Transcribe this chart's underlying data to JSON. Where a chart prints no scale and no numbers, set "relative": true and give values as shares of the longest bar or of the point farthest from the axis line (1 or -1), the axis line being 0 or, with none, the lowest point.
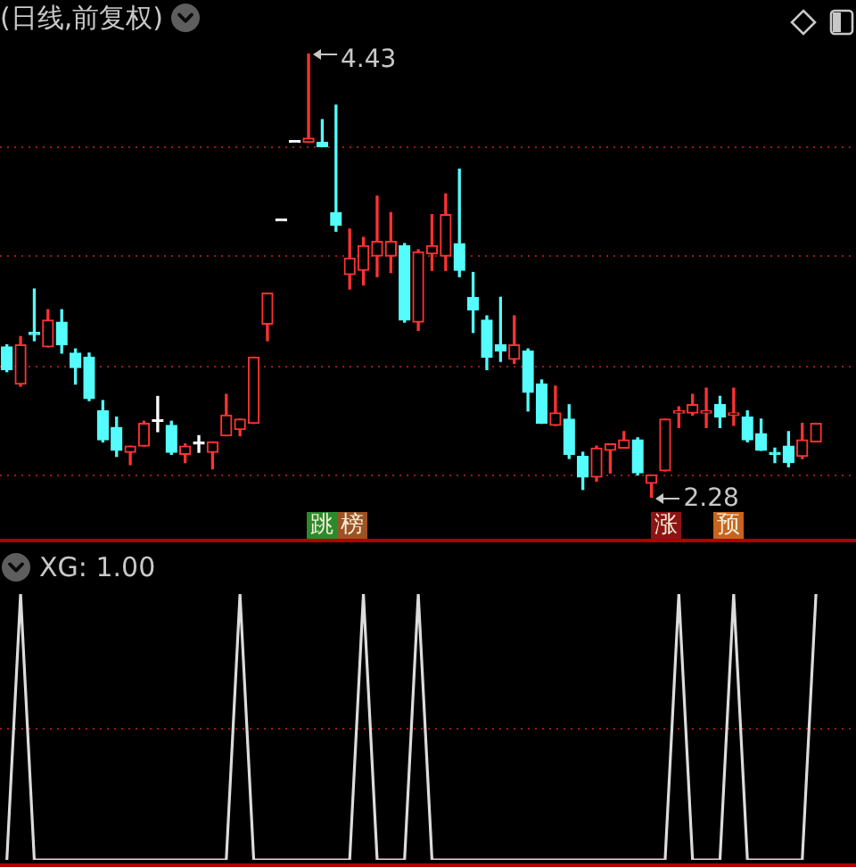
{
  "chart_data": [
    {
      "type": "candlestick",
      "title": "(日线,前复权)",
      "categories": [
        null,
        null,
        null,
        null,
        null,
        null,
        null,
        null,
        null,
        null,
        null,
        null,
        null,
        null,
        null,
        null,
        null,
        null,
        null,
        null,
        null,
        null,
        null,
        null,
        null,
        null,
        null,
        null,
        null,
        null,
        null,
        null,
        null,
        null,
        null,
        null,
        null,
        null,
        null,
        null,
        null,
        null,
        null,
        null,
        null,
        null,
        null,
        null,
        null,
        null,
        null,
        null,
        null,
        null,
        null,
        null,
        null,
        null,
        null,
        null
      ],
      "ohlc": [
        [
          3.01,
          3.02,
          2.89,
          2.9
        ],
        [
          2.83,
          3.06,
          2.82,
          3.02
        ],
        [
          3.08,
          3.29,
          3.04,
          3.07
        ],
        [
          3.01,
          3.19,
          3.01,
          3.14
        ],
        [
          3.13,
          3.19,
          2.98,
          3.02
        ],
        [
          2.98,
          3.0,
          2.83,
          2.91
        ],
        [
          2.96,
          2.98,
          2.75,
          2.76
        ],
        [
          2.7,
          2.75,
          2.55,
          2.56
        ],
        [
          2.62,
          2.67,
          2.48,
          2.51
        ],
        [
          2.5,
          2.53,
          2.44,
          2.53
        ],
        [
          2.53,
          2.65,
          2.53,
          2.64
        ],
        [
          2.65,
          2.77,
          2.6,
          2.65
        ],
        [
          2.63,
          2.65,
          2.49,
          2.5
        ],
        [
          2.49,
          2.54,
          2.45,
          2.53
        ],
        [
          2.54,
          2.58,
          2.5,
          2.54
        ],
        [
          2.5,
          2.55,
          2.42,
          2.55
        ],
        [
          2.58,
          2.78,
          2.58,
          2.68
        ],
        [
          2.61,
          2.66,
          2.58,
          2.66
        ],
        [
          2.64,
          2.96,
          2.64,
          2.96
        ],
        [
          3.12,
          3.27,
          3.04,
          3.27
        ],
        [
          3.62,
          3.62,
          3.62,
          3.62
        ],
        [
          4.0,
          4.0,
          4.0,
          4.0
        ],
        [
          4.0,
          4.43,
          4.0,
          4.02
        ],
        [
          4.0,
          4.11,
          3.98,
          3.98
        ],
        [
          3.66,
          4.18,
          3.57,
          3.6
        ],
        [
          3.36,
          3.58,
          3.29,
          3.44
        ],
        [
          3.38,
          3.54,
          3.31,
          3.5
        ],
        [
          3.45,
          3.74,
          3.35,
          3.52
        ],
        [
          3.45,
          3.66,
          3.37,
          3.52
        ],
        [
          3.5,
          3.51,
          3.13,
          3.14
        ],
        [
          3.13,
          3.48,
          3.09,
          3.47
        ],
        [
          3.46,
          3.65,
          3.38,
          3.5
        ],
        [
          3.45,
          3.75,
          3.38,
          3.65
        ],
        [
          3.51,
          3.87,
          3.35,
          3.38
        ],
        [
          3.25,
          3.37,
          3.08,
          3.19
        ],
        [
          3.14,
          3.16,
          2.9,
          2.96
        ],
        [
          3.02,
          3.25,
          2.94,
          2.99
        ],
        [
          2.95,
          3.16,
          2.93,
          3.02
        ],
        [
          2.99,
          3.0,
          2.7,
          2.79
        ],
        [
          2.83,
          2.85,
          2.64,
          2.64
        ],
        [
          2.63,
          2.82,
          2.63,
          2.69
        ],
        [
          2.66,
          2.73,
          2.47,
          2.49
        ],
        [
          2.48,
          2.5,
          2.32,
          2.38
        ],
        [
          2.38,
          2.53,
          2.36,
          2.52
        ],
        [
          2.51,
          2.54,
          2.4,
          2.54
        ],
        [
          2.52,
          2.6,
          2.52,
          2.56
        ],
        [
          2.56,
          2.57,
          2.39,
          2.4
        ],
        [
          2.35,
          2.39,
          2.28,
          2.39
        ],
        [
          2.41,
          2.66,
          2.41,
          2.66
        ],
        [
          2.69,
          2.72,
          2.62,
          2.7
        ],
        [
          2.69,
          2.78,
          2.68,
          2.73
        ],
        [
          2.69,
          2.81,
          2.62,
          2.7
        ],
        [
          2.73,
          2.77,
          2.62,
          2.67
        ],
        [
          2.68,
          2.81,
          2.63,
          2.69
        ],
        [
          2.67,
          2.7,
          2.55,
          2.56
        ],
        [
          2.59,
          2.66,
          2.51,
          2.51
        ],
        [
          2.5,
          2.52,
          2.45,
          2.49
        ],
        [
          2.53,
          2.6,
          2.43,
          2.45
        ],
        [
          2.48,
          2.64,
          2.47,
          2.56
        ],
        [
          2.55,
          2.64,
          2.55,
          2.64
        ]
      ],
      "colors": [
        "#54fcfc",
        "#ff3232",
        "#54fcfc",
        "#ff3232",
        "#54fcfc",
        "#54fcfc",
        "#54fcfc",
        "#54fcfc",
        "#54fcfc",
        "#ff3232",
        "#ff3232",
        "#ffffff",
        "#54fcfc",
        "#ff3232",
        "#ffffff",
        "#ff3232",
        "#ff3232",
        "#ff3232",
        "#ff3232",
        "#ff3232",
        "#ffffff",
        "#ffffff",
        "#ff3232",
        "#54fcfc",
        "#54fcfc",
        "#ff3232",
        "#ff3232",
        "#ff3232",
        "#ff3232",
        "#54fcfc",
        "#ff3232",
        "#ff3232",
        "#ff3232",
        "#54fcfc",
        "#54fcfc",
        "#54fcfc",
        "#54fcfc",
        "#ff3232",
        "#54fcfc",
        "#54fcfc",
        "#ff3232",
        "#54fcfc",
        "#54fcfc",
        "#ff3232",
        "#ff3232",
        "#ff3232",
        "#54fcfc",
        "#ff3232",
        "#ff3232",
        "#ff3232",
        "#ff3232",
        "#ff3232",
        "#54fcfc",
        "#ff3232",
        "#54fcfc",
        "#54fcfc",
        "#54fcfc",
        "#54fcfc",
        "#ff3232",
        "#ff3232"
      ],
      "yticks": [
        {
          "value": 2.39,
          "label": null
        },
        {
          "value": 2.92,
          "label": null
        },
        {
          "value": 3.45,
          "label": null
        },
        {
          "value": 3.98,
          "label": null
        }
      ],
      "grid": "y",
      "tick_labels": false,
      "annotations": [
        "4.43",
        "2.28",
        "跳",
        "榜",
        "涨",
        "预"
      ]
    },
    {
      "type": "line",
      "title": "XG: 1.00",
      "categories": [
        null,
        null,
        null,
        null,
        null,
        null,
        null,
        null,
        null,
        null,
        null,
        null,
        null,
        null,
        null,
        null,
        null,
        null,
        null,
        null,
        null,
        null,
        null,
        null,
        null,
        null,
        null,
        null,
        null,
        null,
        null,
        null,
        null,
        null,
        null,
        null,
        null,
        null,
        null,
        null,
        null,
        null,
        null,
        null,
        null,
        null,
        null,
        null,
        null,
        null,
        null,
        null,
        null,
        null,
        null,
        null,
        null,
        null,
        null,
        null
      ],
      "series": [
        {
          "color": "#dcdcdc",
          "values": [
            0,
            1,
            0,
            0,
            0,
            0,
            0,
            0,
            0,
            0,
            0,
            0,
            0,
            0,
            0,
            0,
            0,
            1,
            0,
            0,
            0,
            0,
            0,
            0,
            0,
            0,
            1,
            0,
            0,
            0,
            1,
            0,
            0,
            0,
            0,
            0,
            0,
            0,
            0,
            0,
            0,
            0,
            0,
            0,
            0,
            0,
            0,
            0,
            0,
            1,
            0,
            0,
            0,
            1,
            0,
            0,
            0,
            0,
            0,
            1
          ]
        }
      ],
      "relative": true,
      "marker": "none",
      "line_style": "solid",
      "ref_lines": [
        {
          "axis": "y",
          "value": 0.5,
          "color": "#9a1a1a",
          "line_style": "dotted"
        }
      ]
    }
  ]
}
